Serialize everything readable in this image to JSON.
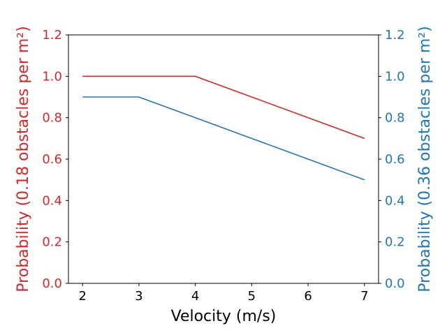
{
  "chart_data": {
    "type": "line",
    "x": [
      2,
      3,
      4,
      5,
      6,
      7
    ],
    "xlabel": "Velocity (m/s)",
    "xlim": [
      1.75,
      7.25
    ],
    "xticks": [
      2,
      3,
      4,
      5,
      6,
      7
    ],
    "ylim": [
      0.0,
      1.2
    ],
    "yticks": [
      0.0,
      0.2,
      0.4,
      0.6,
      0.8,
      1.0,
      1.2
    ],
    "ylabel_left": "Probability (0.18 obstacles per m²)",
    "ylabel_right": "Probability (0.36 obstacles per m²)",
    "grid": false,
    "series": [
      {
        "axis": "left",
        "color": "#d62728",
        "values": [
          1.0,
          1.0,
          1.0,
          0.9,
          0.8,
          0.7
        ]
      },
      {
        "axis": "right",
        "color": "#1f77b4",
        "values": [
          0.9,
          0.9,
          0.8,
          0.7,
          0.6,
          0.5
        ]
      }
    ]
  }
}
